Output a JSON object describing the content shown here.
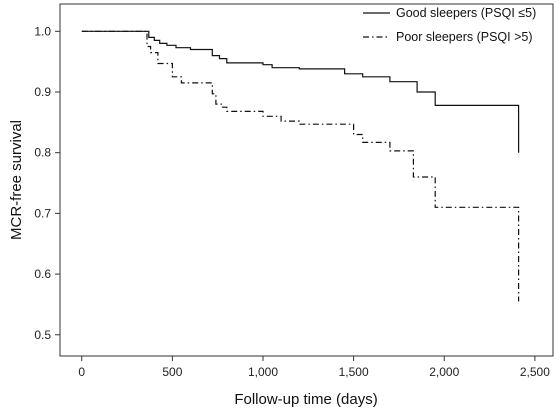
{
  "chart_data": {
    "type": "line",
    "step": true,
    "xlabel": "Follow-up time (days)",
    "ylabel": "MCR-free survival",
    "xlim": [
      -120,
      2600
    ],
    "ylim": [
      0.465,
      1.045
    ],
    "xticks": [
      0,
      500,
      1000,
      1500,
      2000,
      2500
    ],
    "xtick_labels": [
      "0",
      "500",
      "1,000",
      "1,500",
      "2,000",
      "2,500"
    ],
    "yticks": [
      0.5,
      0.6,
      0.7,
      0.8,
      0.9,
      1.0
    ],
    "ytick_labels": [
      "0.5",
      "0.6",
      "0.7",
      "0.8",
      "0.9",
      "1.0"
    ],
    "grid": false,
    "legend_position": "top-right",
    "series": [
      {
        "name": "Good sleepers (PSQI ≤5)",
        "dash": "solid",
        "x": [
          0,
          370,
          400,
          430,
          470,
          520,
          600,
          720,
          760,
          800,
          1000,
          1050,
          1200,
          1450,
          1550,
          1700,
          1850,
          1950,
          2410,
          2410
        ],
        "y": [
          1.0,
          0.99,
          0.985,
          0.98,
          0.977,
          0.973,
          0.97,
          0.96,
          0.955,
          0.948,
          0.945,
          0.94,
          0.938,
          0.93,
          0.925,
          0.917,
          0.9,
          0.878,
          0.878,
          0.8
        ]
      },
      {
        "name": "Poor sleepers (PSQI >5)",
        "dash": "dashdot",
        "x": [
          0,
          360,
          380,
          420,
          500,
          550,
          720,
          740,
          770,
          800,
          1000,
          1100,
          1200,
          1500,
          1550,
          1700,
          1830,
          1950,
          2410,
          2410
        ],
        "y": [
          1.0,
          0.975,
          0.965,
          0.947,
          0.925,
          0.915,
          0.897,
          0.88,
          0.875,
          0.868,
          0.86,
          0.852,
          0.847,
          0.83,
          0.817,
          0.803,
          0.76,
          0.71,
          0.71,
          0.555
        ]
      }
    ]
  }
}
